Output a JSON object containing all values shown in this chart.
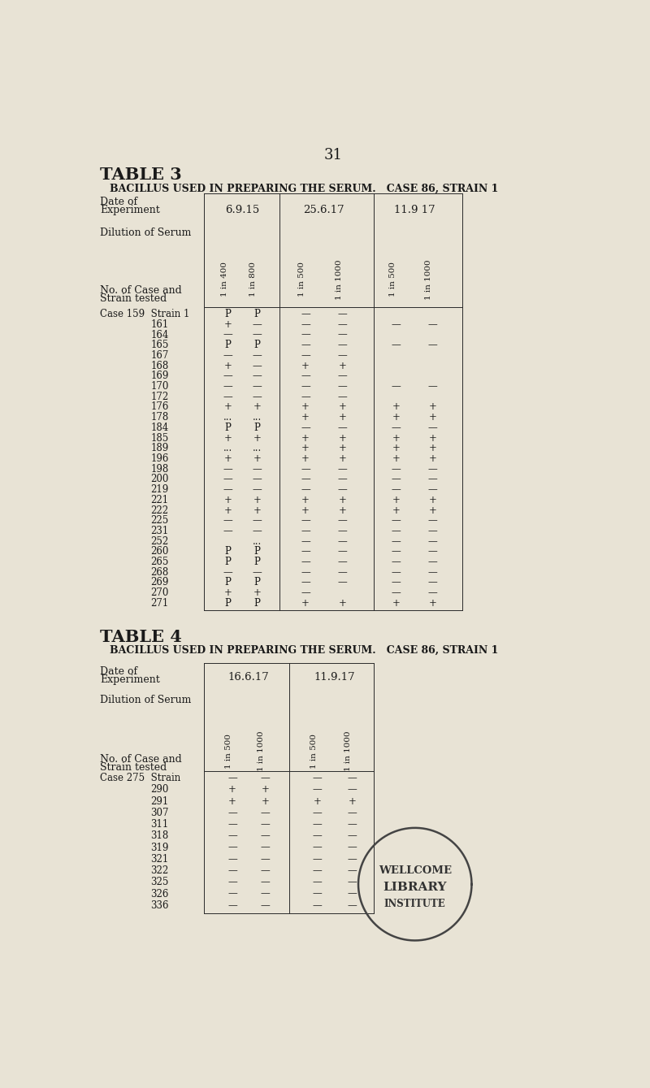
{
  "bg_color": "#e8e3d5",
  "page_number": "31",
  "table3": {
    "title": "TABLE 3",
    "subtitle": "BACILLUS USED IN PREPARING THE SERUM.   CASE 86, STRAIN 1",
    "dates": [
      "6.9.15",
      "25.6.17",
      "11.9 17"
    ],
    "dilutions": [
      "1 in 400",
      "1 in 800",
      "1 in 500",
      "1 in 1000",
      "1 in 500",
      "1 in 1000"
    ],
    "rows": [
      {
        "label": "Case 159  Strain 1",
        "indent": false,
        "vals": [
          "P",
          "P",
          "—",
          "—",
          "",
          ""
        ]
      },
      {
        "label": "161",
        "indent": true,
        "vals": [
          "+",
          "—",
          "—",
          "—",
          "—",
          "—"
        ]
      },
      {
        "label": "164",
        "indent": true,
        "vals": [
          "—",
          "—",
          "—",
          "—",
          "",
          ""
        ]
      },
      {
        "label": "165",
        "indent": true,
        "vals": [
          "P",
          "P",
          "—",
          "—",
          "—",
          "—"
        ]
      },
      {
        "label": "167",
        "indent": true,
        "vals": [
          "—",
          "—",
          "—",
          "—",
          "",
          ""
        ]
      },
      {
        "label": "168",
        "indent": true,
        "vals": [
          "+",
          "—",
          "+",
          "+",
          "",
          ""
        ]
      },
      {
        "label": "169",
        "indent": true,
        "vals": [
          "—",
          "—",
          "—",
          "—",
          "",
          ""
        ]
      },
      {
        "label": "170",
        "indent": true,
        "vals": [
          "—",
          "—",
          "—",
          "—",
          "—",
          "—"
        ]
      },
      {
        "label": "172",
        "indent": true,
        "vals": [
          "—",
          "—",
          "—",
          "—",
          "",
          ""
        ]
      },
      {
        "label": "176",
        "indent": true,
        "vals": [
          "+",
          "+",
          "+",
          "+",
          "+",
          "+"
        ]
      },
      {
        "label": "178",
        "indent": true,
        "vals": [
          "...",
          "...",
          "+",
          "+",
          "+",
          "+"
        ]
      },
      {
        "label": "184",
        "indent": true,
        "vals": [
          "P",
          "P",
          "—",
          "—",
          "—",
          "—"
        ]
      },
      {
        "label": "185",
        "indent": true,
        "vals": [
          "+",
          "+",
          "+",
          "+",
          "+",
          "+"
        ]
      },
      {
        "label": "189",
        "indent": true,
        "vals": [
          "...",
          "...",
          "+",
          "+",
          "+",
          "+"
        ]
      },
      {
        "label": "196",
        "indent": true,
        "vals": [
          "+",
          "+",
          "+",
          "+",
          "+",
          "+"
        ]
      },
      {
        "label": "198",
        "indent": true,
        "vals": [
          "—",
          "—",
          "—",
          "—",
          "—",
          "—"
        ]
      },
      {
        "label": "200",
        "indent": true,
        "vals": [
          "—",
          "—",
          "—",
          "—",
          "—",
          "—"
        ]
      },
      {
        "label": "219",
        "indent": true,
        "vals": [
          "—",
          "—",
          "—",
          "—",
          "—",
          "—"
        ]
      },
      {
        "label": "221",
        "indent": true,
        "vals": [
          "+",
          "+",
          "+",
          "+",
          "+",
          "+"
        ]
      },
      {
        "label": "222",
        "indent": true,
        "vals": [
          "+",
          "+",
          "+",
          "+",
          "+",
          "+"
        ]
      },
      {
        "label": "225",
        "indent": true,
        "vals": [
          "—",
          "—",
          "—",
          "—",
          "—",
          "—"
        ]
      },
      {
        "label": "231",
        "indent": true,
        "vals": [
          "—",
          "—",
          "—",
          "—",
          "—",
          "—"
        ]
      },
      {
        "label": "252",
        "indent": true,
        "vals": [
          "",
          "...",
          "—",
          "—",
          "—",
          "—"
        ]
      },
      {
        "label": "260",
        "indent": true,
        "vals": [
          "P",
          "P",
          "—",
          "—",
          "—",
          "—"
        ]
      },
      {
        "label": "265",
        "indent": true,
        "vals": [
          "P",
          "P",
          "—",
          "—",
          "—",
          "—"
        ]
      },
      {
        "label": "268",
        "indent": true,
        "vals": [
          "—",
          "—",
          "—",
          "—",
          "—",
          "—"
        ]
      },
      {
        "label": "269",
        "indent": true,
        "vals": [
          "P",
          "P",
          "—",
          "—",
          "—",
          "—"
        ]
      },
      {
        "label": "270",
        "indent": true,
        "vals": [
          "+",
          "+",
          "—",
          "",
          "—",
          "—"
        ]
      },
      {
        "label": "271",
        "indent": true,
        "vals": [
          "P",
          "P",
          "+",
          "+",
          "+",
          "+"
        ]
      }
    ]
  },
  "table4": {
    "title": "TABLE 4",
    "subtitle": "BACILLUS USED IN PREPARING THE SERUM.   CASE 86, STRAIN 1",
    "dates": [
      "16.6.17",
      "11.9.17"
    ],
    "dilutions": [
      "1 in 500",
      "1 in 1000",
      "1 in 500",
      "1 in 1000"
    ],
    "rows": [
      {
        "label": "Case 275  Strain",
        "indent": false,
        "vals": [
          "—",
          "—",
          "—",
          "—"
        ]
      },
      {
        "label": "290",
        "indent": true,
        "vals": [
          "+",
          "+",
          "—",
          "—"
        ]
      },
      {
        "label": "291",
        "indent": true,
        "vals": [
          "+",
          "+",
          "+",
          "+"
        ]
      },
      {
        "label": "307",
        "indent": true,
        "vals": [
          "—",
          "—",
          "—",
          "—"
        ]
      },
      {
        "label": "311",
        "indent": true,
        "vals": [
          "—",
          "—",
          "—",
          "—"
        ]
      },
      {
        "label": "318",
        "indent": true,
        "vals": [
          "—",
          "—",
          "—",
          "—"
        ]
      },
      {
        "label": "319",
        "indent": true,
        "vals": [
          "—",
          "—",
          "—",
          "—"
        ]
      },
      {
        "label": "321",
        "indent": true,
        "vals": [
          "—",
          "—",
          "—",
          "—"
        ]
      },
      {
        "label": "322",
        "indent": true,
        "vals": [
          "—",
          "—",
          "—",
          "—"
        ]
      },
      {
        "label": "325",
        "indent": true,
        "vals": [
          "—",
          "—",
          "—",
          "—"
        ]
      },
      {
        "label": "326",
        "indent": true,
        "vals": [
          "—",
          "—",
          "—",
          "—"
        ]
      },
      {
        "label": "336",
        "indent": true,
        "vals": [
          "—",
          "—",
          "—",
          "—"
        ]
      }
    ]
  },
  "stamp": {
    "text_top": "WELLCOME",
    "text_mid": "LIBRARY",
    "text_bot": "INSTITUTE"
  }
}
